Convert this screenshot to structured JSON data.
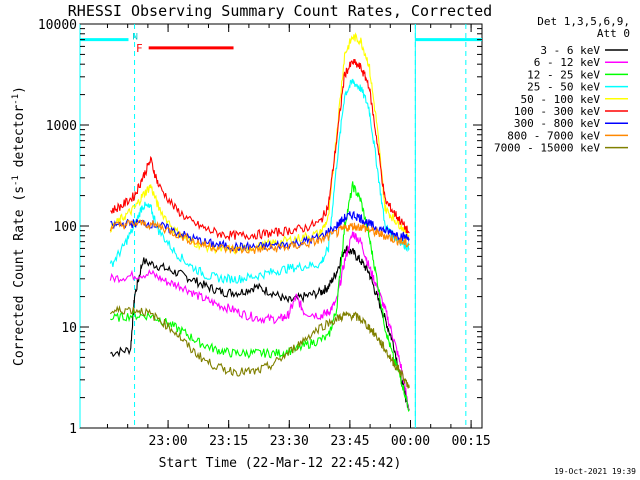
{
  "chart_data": {
    "type": "line",
    "title": "RHESSI Observing Summary Count Rates, Corrected",
    "xlabel": "Start Time (22-Mar-12 22:45:42)",
    "ylabel_main": "Corrected Count Rate (s",
    "ylabel_exp1": "-1",
    "ylabel_mid": " detector",
    "ylabel_exp2": "-1",
    "ylabel_end": ")",
    "y_scale": "log",
    "ylim": [
      1,
      10000
    ],
    "x_unit": "minutes since 22-Mar-12 22:45:42",
    "xlim": [
      -7.5,
      92
    ],
    "x_ticks": [
      {
        "t": 14.3,
        "label": "23:00"
      },
      {
        "t": 29.3,
        "label": "23:15"
      },
      {
        "t": 44.3,
        "label": "23:30"
      },
      {
        "t": 59.3,
        "label": "23:45"
      },
      {
        "t": 74.3,
        "label": "00:00"
      },
      {
        "t": 89.3,
        "label": "00:15"
      }
    ],
    "y_ticks": [
      {
        "v": 1,
        "label": "1"
      },
      {
        "v": 10,
        "label": "10"
      },
      {
        "v": 100,
        "label": "100"
      },
      {
        "v": 1000,
        "label": "1000"
      },
      {
        "v": 10000,
        "label": "10000"
      }
    ],
    "legend": {
      "header_line1": "Det 1,3,5,6,9,",
      "header_line2": "Att 0",
      "placement": "right"
    },
    "status_bars": {
      "night": [
        [
          -7.5,
          4.5
        ],
        [
          75.5,
          92
        ]
      ],
      "saa_label": "N",
      "flare_label": "F",
      "flare": [
        9.5,
        30.5
      ]
    },
    "markers_dashed": [
      6.0,
      75.5,
      88.0
    ],
    "series": [
      {
        "name": "3 - 6 keV",
        "color": "#000000",
        "points": [
          [
            0,
            5.5
          ],
          [
            5,
            6
          ],
          [
            6,
            20
          ],
          [
            8,
            45
          ],
          [
            12,
            40
          ],
          [
            16,
            35
          ],
          [
            20,
            30
          ],
          [
            24,
            25
          ],
          [
            28,
            22
          ],
          [
            32,
            22
          ],
          [
            36,
            25
          ],
          [
            40,
            22
          ],
          [
            44,
            18
          ],
          [
            48,
            20
          ],
          [
            52,
            22
          ],
          [
            54,
            25
          ],
          [
            56,
            35
          ],
          [
            58,
            60
          ],
          [
            60,
            55
          ],
          [
            62,
            45
          ],
          [
            64,
            35
          ],
          [
            66,
            20
          ],
          [
            68,
            12
          ],
          [
            70,
            7
          ],
          [
            72,
            3
          ],
          [
            74,
            1.5
          ]
        ]
      },
      {
        "name": "6 - 12 keV",
        "color": "#ff00ff",
        "points": [
          [
            0,
            30
          ],
          [
            5,
            32
          ],
          [
            10,
            34
          ],
          [
            14,
            28
          ],
          [
            18,
            25
          ],
          [
            22,
            20
          ],
          [
            26,
            17
          ],
          [
            30,
            15
          ],
          [
            34,
            13
          ],
          [
            38,
            12
          ],
          [
            42,
            12
          ],
          [
            44,
            13
          ],
          [
            46,
            20
          ],
          [
            48,
            14
          ],
          [
            52,
            13
          ],
          [
            54,
            14
          ],
          [
            56,
            18
          ],
          [
            58,
            45
          ],
          [
            60,
            85
          ],
          [
            62,
            70
          ],
          [
            64,
            40
          ],
          [
            66,
            25
          ],
          [
            68,
            15
          ],
          [
            70,
            8
          ],
          [
            72,
            4
          ],
          [
            74,
            1.5
          ]
        ]
      },
      {
        "name": "12 - 25 keV",
        "color": "#00ff00",
        "points": [
          [
            0,
            12
          ],
          [
            5,
            13
          ],
          [
            10,
            13
          ],
          [
            14,
            11
          ],
          [
            18,
            9
          ],
          [
            22,
            7
          ],
          [
            26,
            6
          ],
          [
            30,
            5.5
          ],
          [
            34,
            5.5
          ],
          [
            38,
            5.5
          ],
          [
            42,
            5.5
          ],
          [
            46,
            6
          ],
          [
            50,
            7
          ],
          [
            54,
            8
          ],
          [
            56,
            15
          ],
          [
            58,
            100
          ],
          [
            60,
            250
          ],
          [
            62,
            180
          ],
          [
            64,
            80
          ],
          [
            66,
            30
          ],
          [
            68,
            10
          ],
          [
            70,
            5
          ],
          [
            72,
            3
          ],
          [
            74,
            1.5
          ]
        ]
      },
      {
        "name": "25 - 50 keV",
        "color": "#00ffff",
        "points": [
          [
            0,
            40
          ],
          [
            3,
            60
          ],
          [
            6,
            100
          ],
          [
            8,
            160
          ],
          [
            10,
            150
          ],
          [
            12,
            90
          ],
          [
            16,
            55
          ],
          [
            20,
            40
          ],
          [
            24,
            32
          ],
          [
            28,
            30
          ],
          [
            32,
            30
          ],
          [
            36,
            32
          ],
          [
            40,
            35
          ],
          [
            44,
            38
          ],
          [
            48,
            40
          ],
          [
            52,
            42
          ],
          [
            54,
            60
          ],
          [
            56,
            400
          ],
          [
            58,
            2000
          ],
          [
            60,
            2700
          ],
          [
            62,
            2300
          ],
          [
            64,
            1500
          ],
          [
            66,
            400
          ],
          [
            68,
            100
          ],
          [
            70,
            80
          ],
          [
            72,
            70
          ],
          [
            74,
            60
          ]
        ]
      },
      {
        "name": "50 - 100 keV",
        "color": "#ffff00",
        "points": [
          [
            0,
            95
          ],
          [
            3,
            120
          ],
          [
            6,
            150
          ],
          [
            8,
            200
          ],
          [
            10,
            250
          ],
          [
            12,
            150
          ],
          [
            16,
            90
          ],
          [
            20,
            70
          ],
          [
            24,
            62
          ],
          [
            28,
            58
          ],
          [
            32,
            58
          ],
          [
            36,
            62
          ],
          [
            40,
            67
          ],
          [
            44,
            72
          ],
          [
            48,
            78
          ],
          [
            52,
            85
          ],
          [
            54,
            120
          ],
          [
            56,
            800
          ],
          [
            58,
            5000
          ],
          [
            60,
            7500
          ],
          [
            62,
            6800
          ],
          [
            64,
            4000
          ],
          [
            66,
            1000
          ],
          [
            68,
            150
          ],
          [
            70,
            120
          ],
          [
            72,
            100
          ],
          [
            74,
            80
          ]
        ]
      },
      {
        "name": "100 - 300 keV",
        "color": "#ff0000",
        "points": [
          [
            0,
            140
          ],
          [
            3,
            160
          ],
          [
            6,
            200
          ],
          [
            8,
            300
          ],
          [
            10,
            450
          ],
          [
            12,
            250
          ],
          [
            16,
            150
          ],
          [
            20,
            110
          ],
          [
            24,
            92
          ],
          [
            28,
            82
          ],
          [
            32,
            80
          ],
          [
            36,
            82
          ],
          [
            40,
            85
          ],
          [
            44,
            90
          ],
          [
            48,
            95
          ],
          [
            52,
            110
          ],
          [
            54,
            160
          ],
          [
            56,
            700
          ],
          [
            58,
            3200
          ],
          [
            60,
            4200
          ],
          [
            62,
            3700
          ],
          [
            64,
            2500
          ],
          [
            66,
            700
          ],
          [
            68,
            180
          ],
          [
            70,
            140
          ],
          [
            72,
            110
          ],
          [
            74,
            85
          ]
        ]
      },
      {
        "name": "300 - 800 keV",
        "color": "#0000ff",
        "points": [
          [
            0,
            100
          ],
          [
            4,
            105
          ],
          [
            8,
            108
          ],
          [
            12,
            102
          ],
          [
            16,
            88
          ],
          [
            20,
            76
          ],
          [
            24,
            68
          ],
          [
            28,
            64
          ],
          [
            32,
            62
          ],
          [
            36,
            62
          ],
          [
            40,
            64
          ],
          [
            44,
            66
          ],
          [
            48,
            70
          ],
          [
            52,
            78
          ],
          [
            56,
            100
          ],
          [
            58,
            120
          ],
          [
            60,
            130
          ],
          [
            62,
            120
          ],
          [
            64,
            105
          ],
          [
            66,
            95
          ],
          [
            68,
            90
          ],
          [
            70,
            85
          ],
          [
            72,
            80
          ],
          [
            74,
            75
          ]
        ]
      },
      {
        "name": "800 - 7000 keV",
        "color": "#ff8800",
        "points": [
          [
            0,
            98
          ],
          [
            4,
            104
          ],
          [
            8,
            106
          ],
          [
            12,
            100
          ],
          [
            16,
            85
          ],
          [
            20,
            72
          ],
          [
            24,
            64
          ],
          [
            28,
            60
          ],
          [
            32,
            58
          ],
          [
            36,
            58
          ],
          [
            40,
            60
          ],
          [
            44,
            62
          ],
          [
            48,
            66
          ],
          [
            52,
            72
          ],
          [
            56,
            85
          ],
          [
            58,
            95
          ],
          [
            60,
            100
          ],
          [
            62,
            98
          ],
          [
            64,
            92
          ],
          [
            66,
            85
          ],
          [
            68,
            80
          ],
          [
            70,
            75
          ],
          [
            72,
            70
          ],
          [
            74,
            65
          ]
        ]
      },
      {
        "name": "7000 - 15000 keV",
        "color": "#808000",
        "points": [
          [
            0,
            14
          ],
          [
            4,
            15
          ],
          [
            8,
            14.5
          ],
          [
            12,
            12
          ],
          [
            16,
            9
          ],
          [
            20,
            6
          ],
          [
            24,
            4.5
          ],
          [
            28,
            3.8
          ],
          [
            32,
            3.6
          ],
          [
            36,
            3.6
          ],
          [
            40,
            4.2
          ],
          [
            44,
            5.5
          ],
          [
            48,
            7.5
          ],
          [
            52,
            10
          ],
          [
            56,
            12
          ],
          [
            58,
            13
          ],
          [
            60,
            13
          ],
          [
            62,
            12
          ],
          [
            64,
            10
          ],
          [
            66,
            8
          ],
          [
            68,
            6
          ],
          [
            70,
            4.5
          ],
          [
            72,
            3.5
          ],
          [
            74,
            2.5
          ]
        ]
      }
    ]
  },
  "footer": {
    "timestamp": "19-Oct-2021 19:39"
  }
}
